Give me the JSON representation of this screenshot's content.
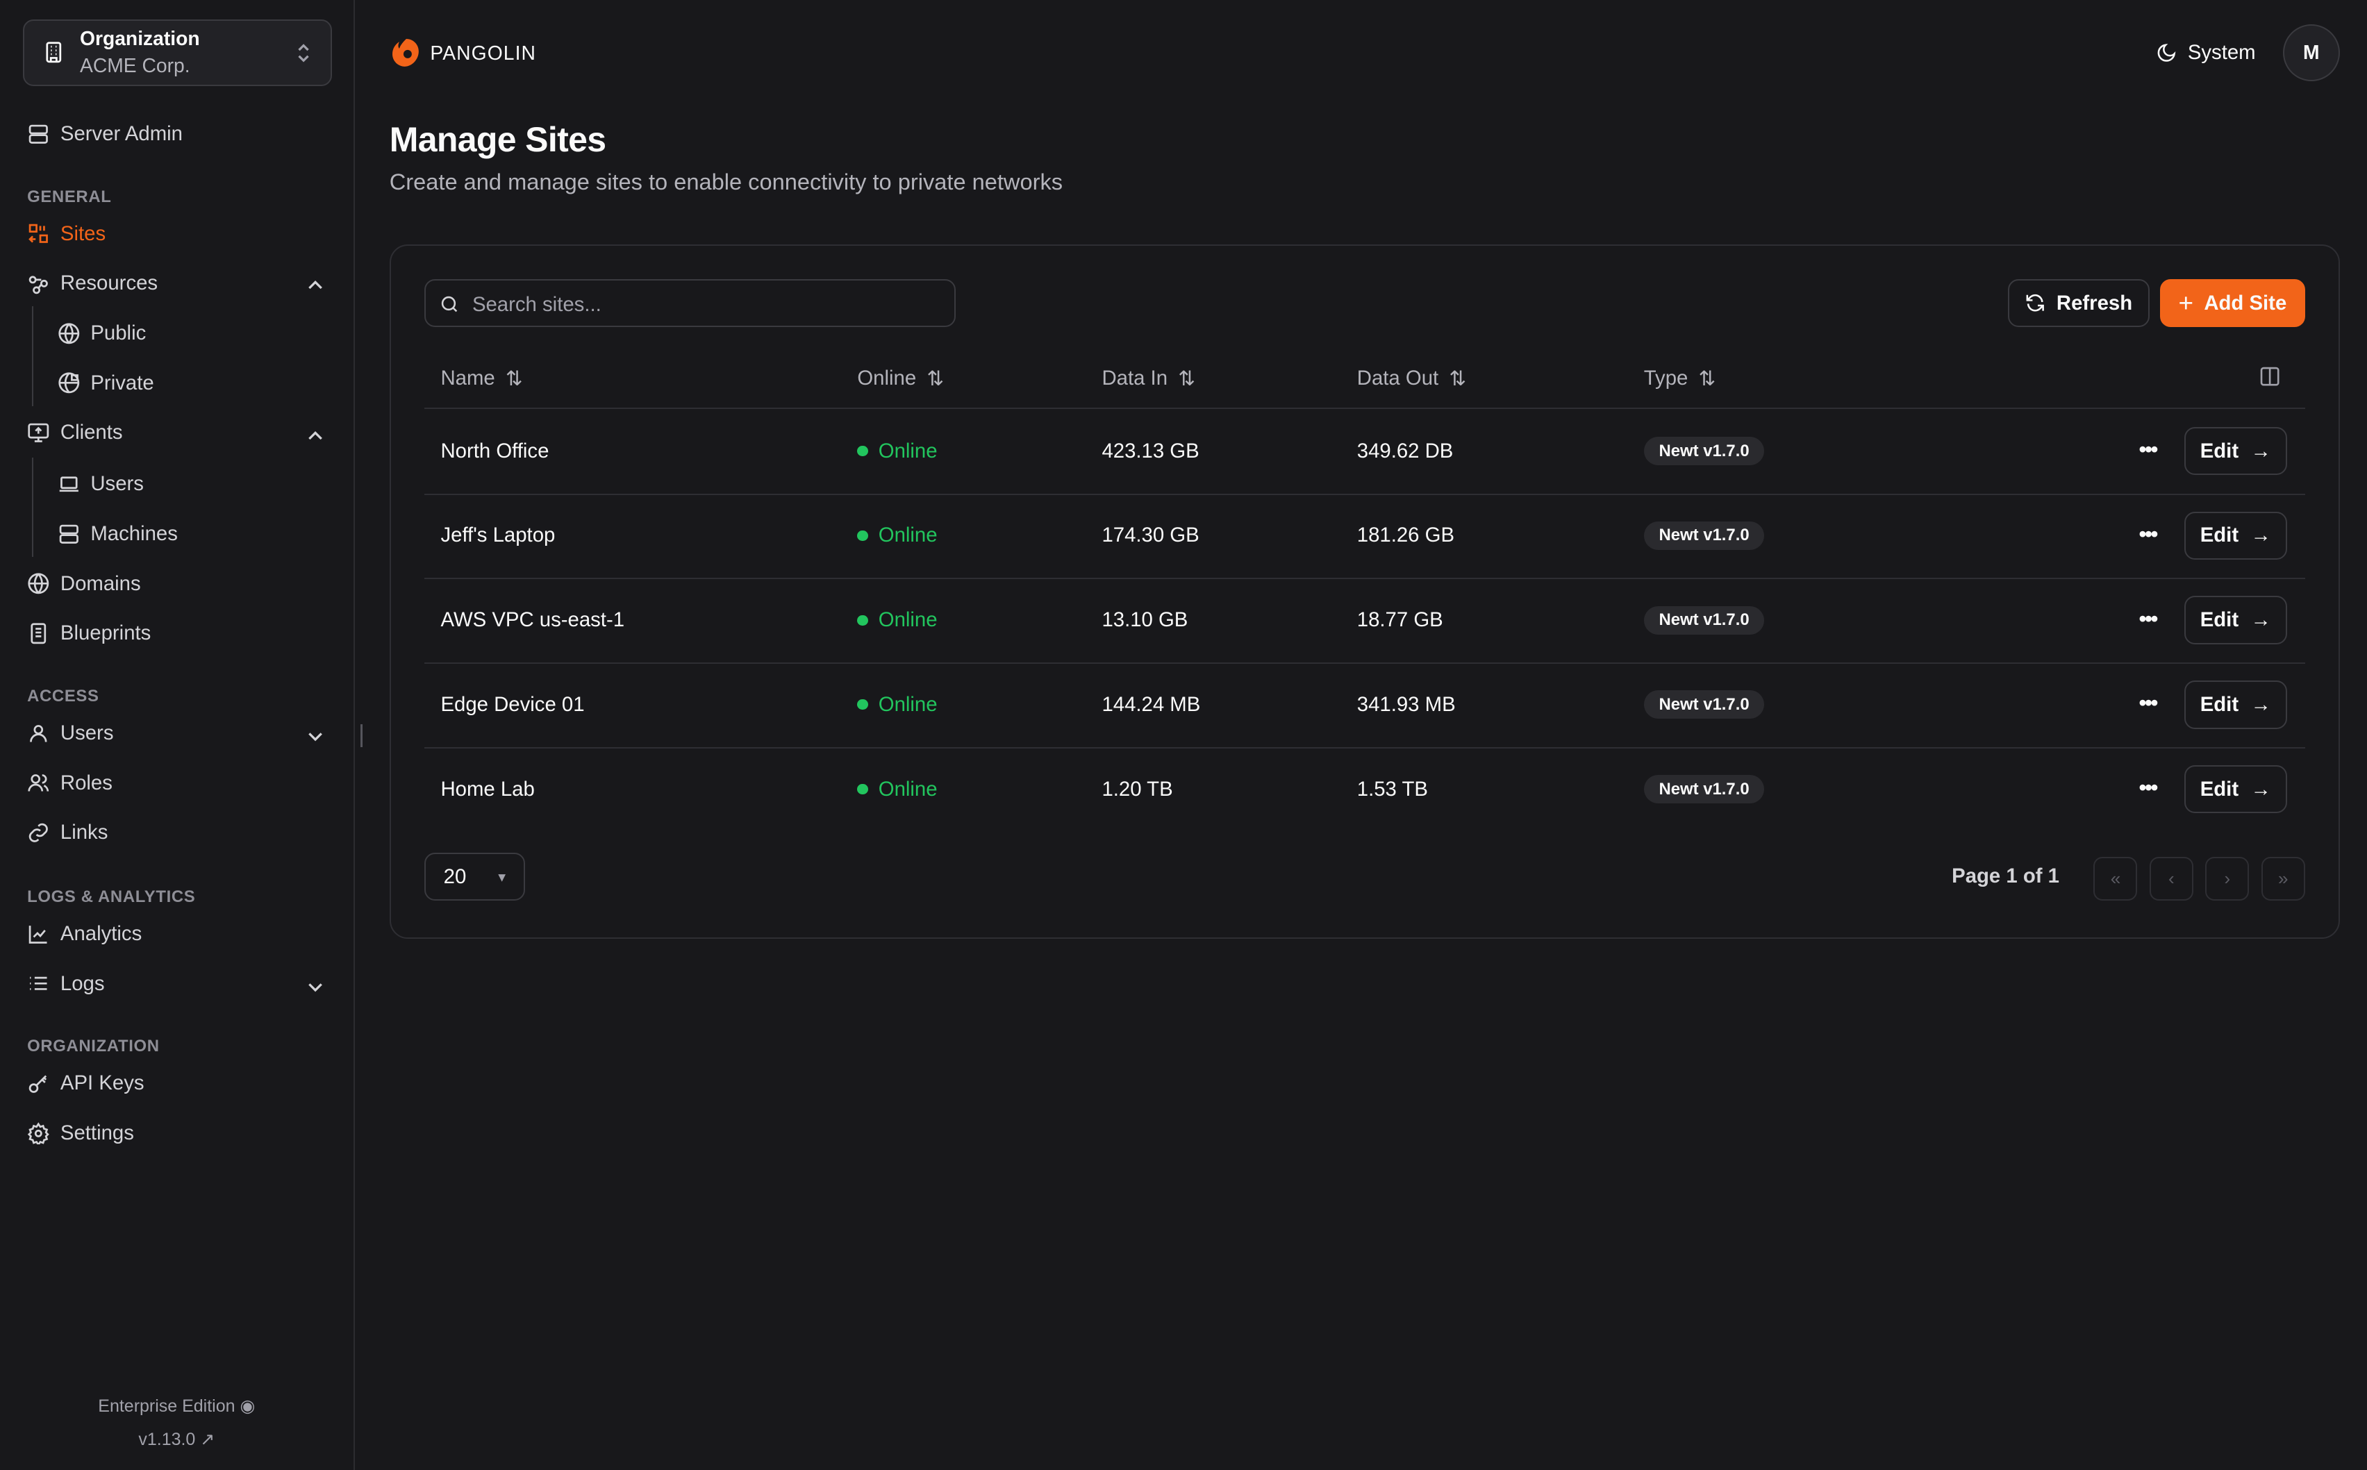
{
  "org": {
    "label": "Organization",
    "name": "ACME Corp."
  },
  "sidebar": {
    "server_admin": "Server Admin",
    "sections": [
      "GENERAL",
      "ACCESS",
      "LOGS & ANALYTICS",
      "ORGANIZATION"
    ],
    "items": {
      "sites": "Sites",
      "resources": "Resources",
      "public": "Public",
      "private": "Private",
      "clients": "Clients",
      "users_sub": "Users",
      "machines": "Machines",
      "domains": "Domains",
      "blueprints": "Blueprints",
      "users": "Users",
      "roles": "Roles",
      "links": "Links",
      "analytics": "Analytics",
      "logs": "Logs",
      "api_keys": "API Keys",
      "settings": "Settings"
    },
    "edition": "Enterprise Edition",
    "version": "v1.13.0"
  },
  "header": {
    "brand": "PANGOLIN",
    "theme": "System",
    "avatar": "M",
    "accent": "#f26419"
  },
  "page": {
    "title": "Manage Sites",
    "subtitle": "Create and manage sites to enable connectivity to private networks"
  },
  "toolbar": {
    "search_placeholder": "Search sites...",
    "refresh": "Refresh",
    "add": "Add Site"
  },
  "table": {
    "columns": [
      "Name",
      "Online",
      "Data In",
      "Data Out",
      "Type"
    ],
    "rows": [
      {
        "name": "North Office",
        "status": "Online",
        "data_in": "423.13 GB",
        "data_out": "349.62 DB",
        "type": "Newt v1.7.0"
      },
      {
        "name": "Jeff's Laptop",
        "status": "Online",
        "data_in": "174.30 GB",
        "data_out": "181.26 GB",
        "type": "Newt v1.7.0"
      },
      {
        "name": "AWS VPC us-east-1",
        "status": "Online",
        "data_in": "13.10 GB",
        "data_out": "18.77 GB",
        "type": "Newt v1.7.0"
      },
      {
        "name": "Edge Device 01",
        "status": "Online",
        "data_in": "144.24 MB",
        "data_out": "341.93 MB",
        "type": "Newt v1.7.0"
      },
      {
        "name": "Home Lab",
        "status": "Online",
        "data_in": "1.20 TB",
        "data_out": "1.53 TB",
        "type": "Newt v1.7.0"
      }
    ],
    "edit_label": "Edit"
  },
  "pagination": {
    "page_size": "20",
    "page_info": "Page 1 of 1"
  }
}
